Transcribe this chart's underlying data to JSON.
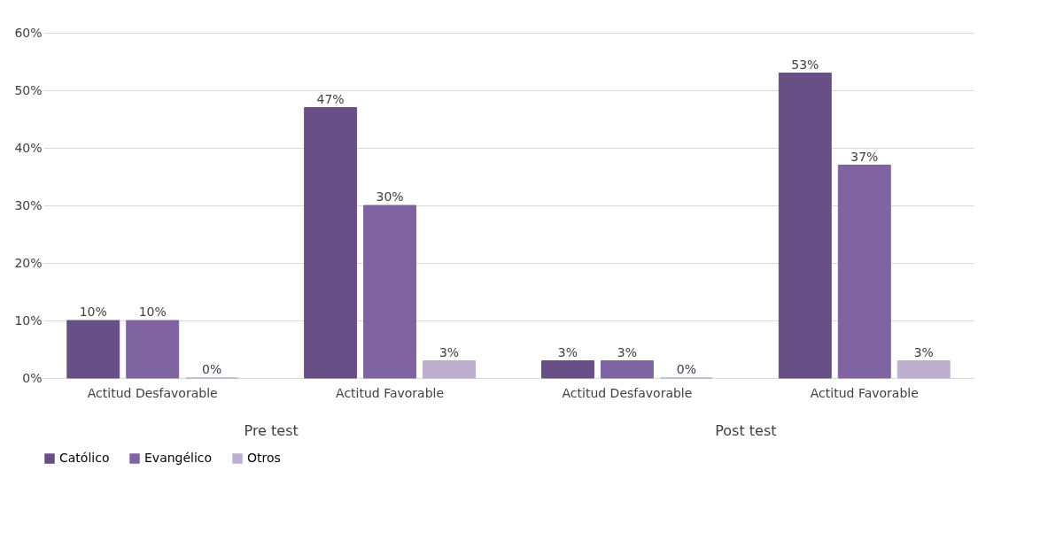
{
  "chart_data": {
    "type": "bar",
    "categories": [
      "Actitud Desfavorable",
      "Actitud Favorable",
      "Actitud Desfavorable",
      "Actitud Favorable"
    ],
    "series": [
      {
        "name": "Católico",
        "color": "#684f86",
        "values": [
          10,
          47,
          3,
          53
        ],
        "value_labels": [
          "10%",
          "47%",
          "3%",
          "53%"
        ]
      },
      {
        "name": "Evangélico",
        "color": "#8064a2",
        "values": [
          10,
          30,
          3,
          37
        ],
        "value_labels": [
          "10%",
          "30%",
          "3%",
          "37%"
        ]
      },
      {
        "name": "Otros",
        "color": "#bcafcf",
        "values": [
          0,
          3,
          0,
          3
        ],
        "value_labels": [
          "0%",
          "3%",
          "0%",
          "3%"
        ]
      }
    ],
    "annotations": [
      "Pre test",
      "Post test"
    ],
    "ylim": [
      0,
      60
    ],
    "yticks": [
      {
        "value": 0,
        "label": "0%"
      },
      {
        "value": 10,
        "label": "10%"
      },
      {
        "value": 20,
        "label": "20%"
      },
      {
        "value": 30,
        "label": "30%"
      },
      {
        "value": 40,
        "label": "40%"
      },
      {
        "value": 50,
        "label": "50%"
      },
      {
        "value": 60,
        "label": "60%"
      }
    ],
    "grid": "y",
    "legend": "bottom"
  }
}
